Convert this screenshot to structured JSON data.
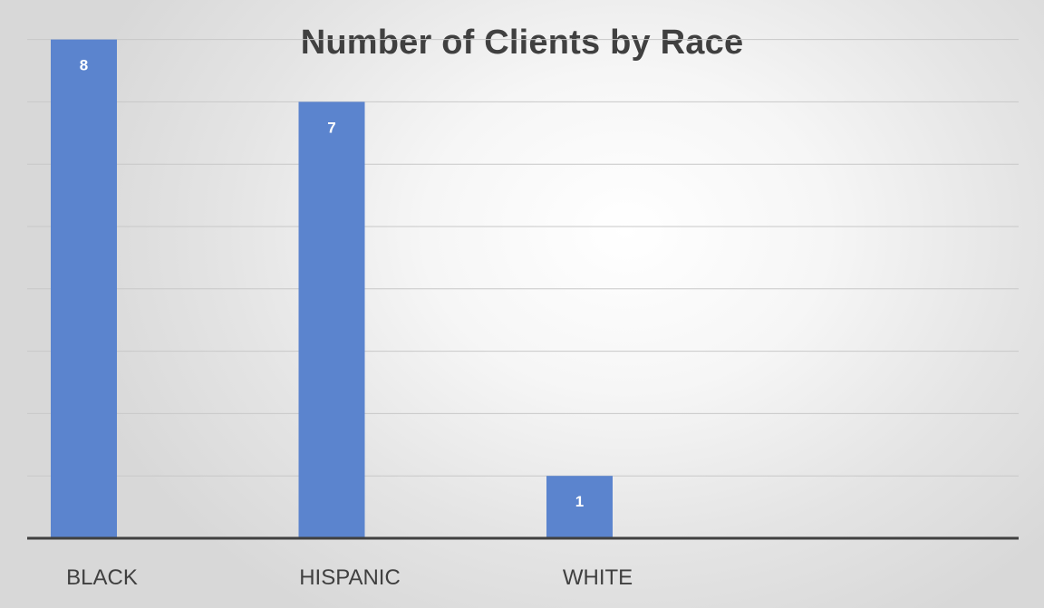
{
  "chart_data": {
    "type": "bar",
    "title": "Number of Clients by Race",
    "categories": [
      "BLACK",
      "HISPANIC",
      "WHITE"
    ],
    "values": [
      8,
      7,
      1
    ],
    "data_labels": [
      "8",
      "7",
      "1"
    ],
    "ylim": [
      0,
      10
    ],
    "grid": true,
    "bar_color": "#5b84ce",
    "gridline_color": "#c8c8c8",
    "axis_color": "#404040",
    "text_color": "#404040"
  }
}
